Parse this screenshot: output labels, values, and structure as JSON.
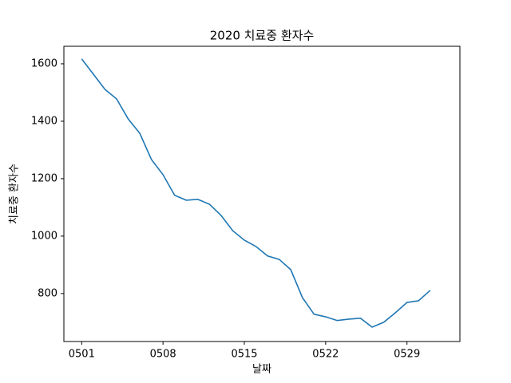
{
  "chart_data": {
    "type": "line",
    "title": "2020 치료중 환자수",
    "xlabel": "날짜",
    "ylabel": "치료중 환자수",
    "categories": [
      "0501",
      null,
      null,
      null,
      null,
      null,
      null,
      "0508",
      null,
      null,
      null,
      null,
      null,
      null,
      "0515",
      null,
      null,
      null,
      null,
      null,
      null,
      "0522",
      null,
      null,
      null,
      null,
      null,
      null,
      "0529",
      null,
      null
    ],
    "series": [
      {
        "name": "치료중 환자수",
        "color": "#1f77b4",
        "values": [
          1617,
          1564,
          1511,
          1478,
          1408,
          1358,
          1267,
          1214,
          1142,
          1125,
          1128,
          1111,
          1072,
          1019,
          986,
          964,
          931,
          919,
          883,
          786,
          728,
          719,
          706,
          711,
          714,
          683,
          700,
          733,
          769,
          775,
          811
        ]
      }
    ],
    "ylim": [
      633,
      1661
    ],
    "yticks": [
      800,
      1000,
      1200,
      1400,
      1600
    ],
    "grid": false
  }
}
